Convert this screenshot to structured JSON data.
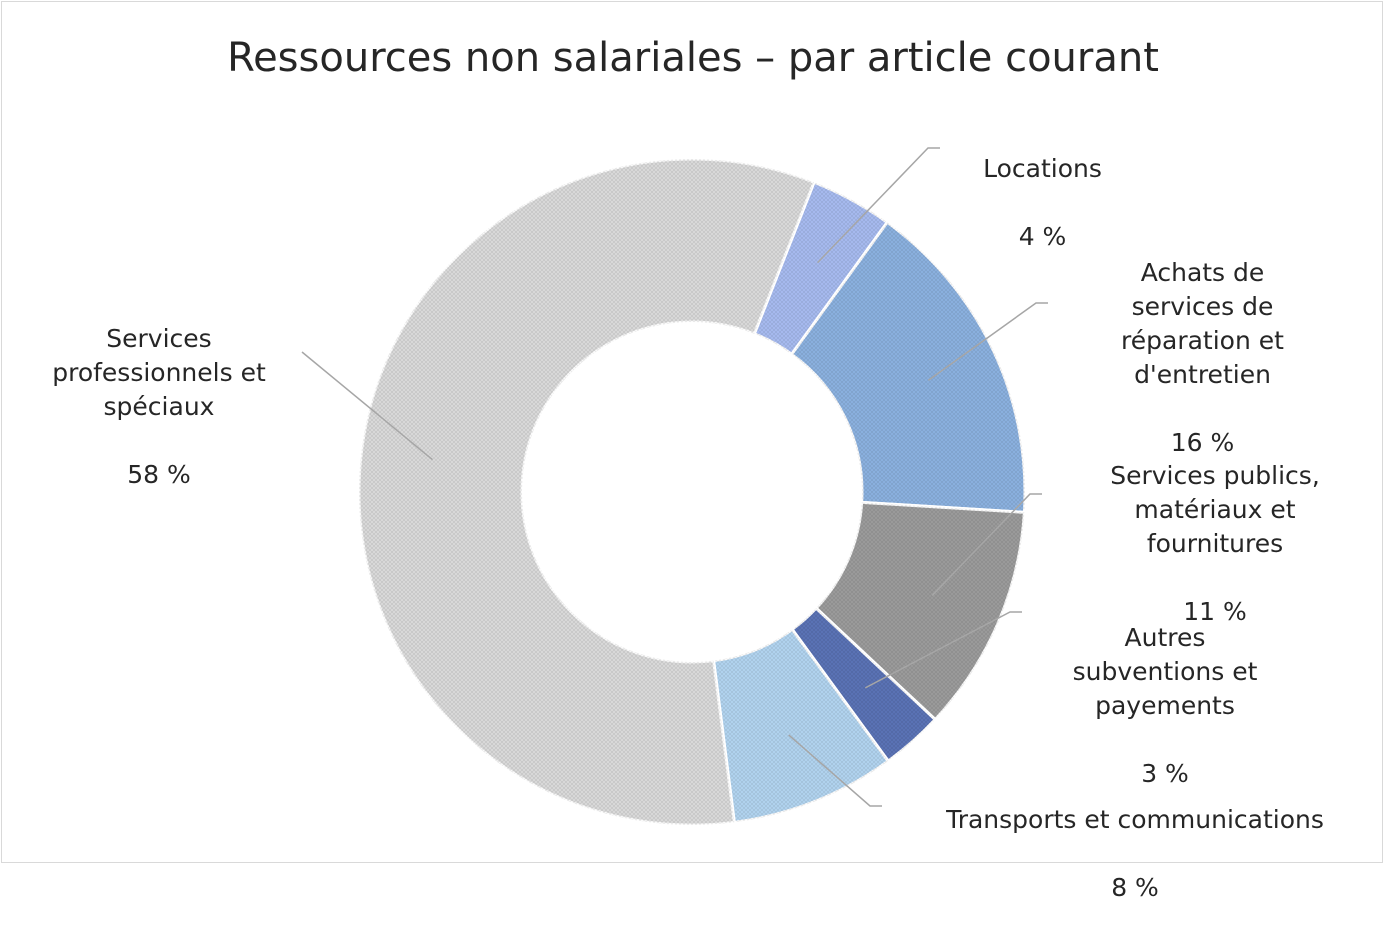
{
  "chart_data": {
    "type": "pie",
    "variant": "doughnut",
    "title": "Ressources non salariales – par article courant",
    "slices": [
      {
        "label": "Locations",
        "value_label": "4 %",
        "value": 4,
        "color": "#a9bdf2"
      },
      {
        "label": "Achats de services de réparation et d'entretien",
        "value_label": "16 %",
        "value": 16,
        "color": "#8db3e2"
      },
      {
        "label": "Services publics, matériaux et fournitures",
        "value_label": "11 %",
        "value": 11,
        "color": "#9d9d9d"
      },
      {
        "label": "Autres subventions et payements",
        "value_label": "3 %",
        "value": 3,
        "color": "#5b74b8"
      },
      {
        "label": "Transports et communications",
        "value_label": "8 %",
        "value": 8,
        "color": "#b4d6f2"
      },
      {
        "label": "Services professionnels et spéciaux",
        "value_label": "58 %",
        "value": 58,
        "color": "#dcdcdc"
      }
    ],
    "legend": "none"
  }
}
